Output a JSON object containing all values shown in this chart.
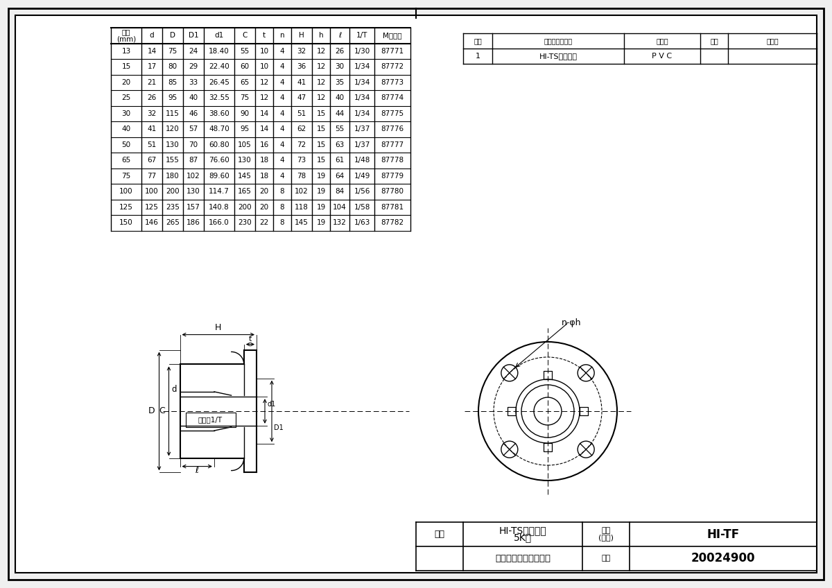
{
  "bg_color": "#f2f2f2",
  "parts_table": {
    "headers": [
      "番号",
      "部 品 名 称",
      "材　質",
      "数量",
      "備　考"
    ],
    "row": [
      "1",
      "HI-TSフランジ",
      "P V C",
      "",
      ""
    ]
  },
  "main_table": {
    "headers": [
      "呪径\n(mm)",
      "d",
      "D",
      "D1",
      "d1",
      "C",
      "t",
      "n",
      "H",
      "h",
      "ℓ",
      "1/T",
      "Mコード"
    ],
    "rows": [
      [
        "13",
        "14",
        "75",
        "24",
        "18.40",
        "55",
        "10",
        "4",
        "32",
        "12",
        "26",
        "1/30",
        "87771"
      ],
      [
        "15",
        "17",
        "80",
        "29",
        "22.40",
        "60",
        "10",
        "4",
        "36",
        "12",
        "30",
        "1/34",
        "87772"
      ],
      [
        "20",
        "21",
        "85",
        "33",
        "26.45",
        "65",
        "12",
        "4",
        "41",
        "12",
        "35",
        "1/34",
        "87773"
      ],
      [
        "25",
        "26",
        "95",
        "40",
        "32.55",
        "75",
        "12",
        "4",
        "47",
        "12",
        "40",
        "1/34",
        "87774"
      ],
      [
        "30",
        "32",
        "115",
        "46",
        "38.60",
        "90",
        "14",
        "4",
        "51",
        "15",
        "44",
        "1/34",
        "87775"
      ],
      [
        "40",
        "41",
        "120",
        "57",
        "48.70",
        "95",
        "14",
        "4",
        "62",
        "15",
        "55",
        "1/37",
        "87776"
      ],
      [
        "50",
        "51",
        "130",
        "70",
        "60.80",
        "105",
        "16",
        "4",
        "72",
        "15",
        "63",
        "1/37",
        "87777"
      ],
      [
        "65",
        "67",
        "155",
        "87",
        "76.60",
        "130",
        "18",
        "4",
        "73",
        "15",
        "61",
        "1/48",
        "87778"
      ],
      [
        "75",
        "77",
        "180",
        "102",
        "89.60",
        "145",
        "18",
        "4",
        "78",
        "19",
        "64",
        "1/49",
        "87779"
      ],
      [
        "100",
        "100",
        "200",
        "130",
        "114.7",
        "165",
        "20",
        "8",
        "102",
        "19",
        "84",
        "1/56",
        "87780"
      ],
      [
        "125",
        "125",
        "235",
        "157",
        "140.8",
        "200",
        "20",
        "8",
        "118",
        "19",
        "104",
        "1/58",
        "87781"
      ],
      [
        "150",
        "146",
        "265",
        "186",
        "166.0",
        "230",
        "22",
        "8",
        "145",
        "19",
        "132",
        "1/63",
        "87782"
      ]
    ]
  },
  "bottom_table": {
    "product_name_line1": "HI-TSフランジ",
    "product_name_line2": "5K用",
    "type_label": "型式\n(番号)",
    "type_value": "HI-TF",
    "company": "前沢化成工業株式会社",
    "drawing_label": "図番",
    "drawing_number": "20024900"
  }
}
